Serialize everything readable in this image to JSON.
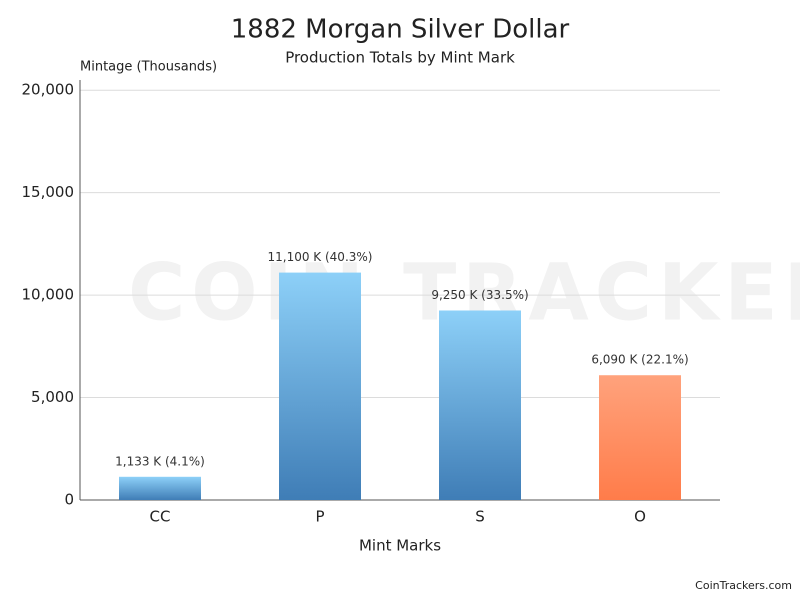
{
  "chart_data": {
    "type": "bar",
    "title": "1882 Morgan Silver Dollar",
    "subtitle": "Production Totals by Mint Mark",
    "y_label": "Mintage (Thousands)",
    "x_label": "Mint Marks",
    "watermark": "COIN TRACKERS",
    "credit": "CoinTrackers.com",
    "categories": [
      "CC",
      "P",
      "S",
      "O"
    ],
    "values": [
      1133,
      11100,
      9250,
      6090
    ],
    "value_labels": [
      "1,133 K (4.1%)",
      "11,100 K (40.3%)",
      "9,250 K (33.5%)",
      "6,090 K (22.1%)"
    ],
    "colors": [
      [
        "#8dd0f8",
        "#3f7db6"
      ],
      [
        "#8dd0f8",
        "#3f7db6"
      ],
      [
        "#8dd0f8",
        "#3f7db6"
      ],
      [
        "#ffa27c",
        "#ff7c4a"
      ]
    ],
    "ylim": [
      0,
      20500
    ],
    "yticks": [
      0,
      {
        "value": 5000,
        "label": "5,000"
      },
      {
        "value": 10000,
        "label": "10,000"
      },
      {
        "value": 15000,
        "label": "15,000"
      },
      {
        "value": 20000,
        "label": "20,000"
      }
    ],
    "grid": true
  }
}
